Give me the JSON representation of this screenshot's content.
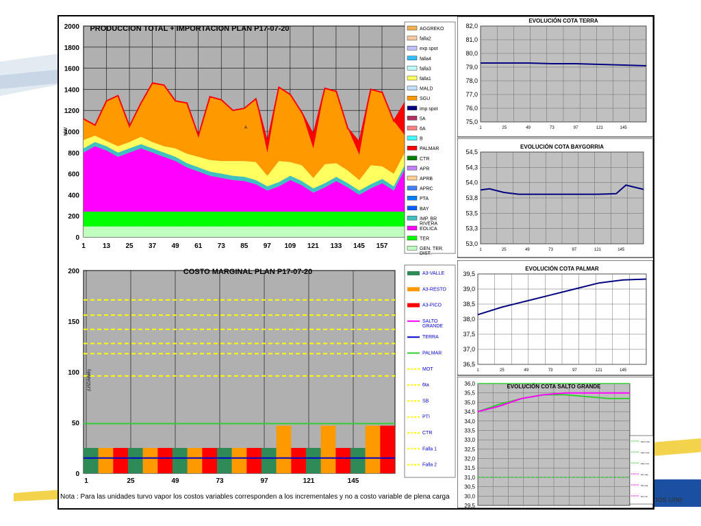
{
  "brand_text": "nos une",
  "note": "Nota : Para las unidades turvo vapor los costos variables corresponden a los incrementales y no a costo variable de plena carga",
  "chart_data": [
    {
      "type": "area",
      "title": "PRODUCCION TOTAL + IMPORTACION  PLAN    P17-07-20",
      "ylabel": "MW",
      "xlabel": "",
      "ylim": [
        0,
        2000
      ],
      "yticks": [
        "0",
        "200",
        "400",
        "600",
        "800",
        "1000",
        "1200",
        "1400",
        "1600",
        "1800",
        "2000"
      ],
      "xticks": [
        "1",
        "13",
        "25",
        "37",
        "49",
        "61",
        "73",
        "85",
        "97",
        "109",
        "121",
        "133",
        "145",
        "157"
      ],
      "annotation": "A",
      "legend": [
        {
          "name": "AGGREKO",
          "color": "#f0b050"
        },
        {
          "name": "falla2",
          "color": "#f4c8a0"
        },
        {
          "name": "exp spot",
          "color": "#c0c0ff"
        },
        {
          "name": "falla4",
          "color": "#30c0ff"
        },
        {
          "name": "falla3",
          "color": "#c0ffff"
        },
        {
          "name": "falla1",
          "color": "#ffff60"
        },
        {
          "name": "MALD",
          "color": "#c0e0ff"
        },
        {
          "name": "SGU",
          "color": "#ff9900"
        },
        {
          "name": "imp spot",
          "color": "#000080"
        },
        {
          "name": "5A",
          "color": "#b03060"
        },
        {
          "name": "6A",
          "color": "#ff8080"
        },
        {
          "name": "B",
          "color": "#40ffff"
        },
        {
          "name": "PALMAR",
          "color": "#ff0000"
        },
        {
          "name": "CTR",
          "color": "#008000"
        },
        {
          "name": "APR",
          "color": "#c080ff"
        },
        {
          "name": "APRB",
          "color": "#ffd090"
        },
        {
          "name": "APRC",
          "color": "#4080ff"
        },
        {
          "name": "PTA",
          "color": "#0080ff"
        },
        {
          "name": "BAY",
          "color": "#0060ff"
        },
        {
          "name": "IMP. BR RIVERA",
          "color": "#40c0c0"
        },
        {
          "name": "EOLICA",
          "color": "#ff00ff"
        },
        {
          "name": "TER",
          "color": "#00ff00"
        },
        {
          "name": "GEN. TER. DIST.",
          "color": "#c0ffc0"
        }
      ],
      "series": [
        {
          "name": "GEN. TER. DIST.",
          "values": [
            100,
            100,
            100,
            100,
            100,
            100,
            100,
            100,
            100,
            100,
            100,
            100,
            100,
            100,
            100,
            100,
            100,
            100,
            100,
            100,
            100,
            100,
            100,
            100,
            100,
            100,
            100,
            100,
            100
          ]
        },
        {
          "name": "TER",
          "values": [
            140,
            140,
            140,
            140,
            140,
            140,
            140,
            140,
            140,
            140,
            140,
            140,
            140,
            140,
            140,
            140,
            140,
            140,
            140,
            140,
            140,
            140,
            140,
            140,
            140,
            140,
            140,
            140,
            140
          ]
        },
        {
          "name": "EOLICA",
          "values": [
            560,
            620,
            580,
            520,
            560,
            600,
            560,
            520,
            480,
            420,
            380,
            340,
            320,
            300,
            290,
            260,
            200,
            240,
            300,
            250,
            180,
            230,
            290,
            230,
            160,
            220,
            270,
            200,
            410
          ]
        },
        {
          "name": "IMP. BR RIVERA",
          "values": [
            40,
            40,
            40,
            40,
            40,
            40,
            40,
            40,
            40,
            40,
            40,
            40,
            40,
            40,
            40,
            40,
            40,
            40,
            40,
            40,
            40,
            40,
            40,
            40,
            40,
            40,
            40,
            40,
            40
          ]
        },
        {
          "name": "falla1",
          "values": [
            80,
            60,
            50,
            60,
            60,
            70,
            60,
            60,
            80,
            90,
            100,
            110,
            120,
            140,
            150,
            170,
            100,
            200,
            130,
            150,
            100,
            180,
            130,
            120,
            100,
            180,
            120,
            120,
            120
          ]
        },
        {
          "name": "SGU",
          "values": [
            200,
            100,
            380,
            480,
            150,
            320,
            560,
            580,
            450,
            480,
            200,
            600,
            580,
            480,
            500,
            600,
            220,
            700,
            640,
            500,
            280,
            720,
            680,
            400,
            240,
            720,
            700,
            500,
            150
          ]
        },
        {
          "name": "PALMAR",
          "values": [
            0,
            0,
            0,
            0,
            0,
            0,
            0,
            0,
            0,
            0,
            0,
            0,
            0,
            0,
            0,
            0,
            100,
            0,
            0,
            0,
            130,
            0,
            0,
            0,
            120,
            0,
            0,
            0,
            320
          ]
        }
      ]
    },
    {
      "type": "bar",
      "title": "COSTO MARGINAL  PLAN    P17-07-20",
      "ylabel": "(USD/MWh)",
      "ylim": [
        0,
        200
      ],
      "yticks": [
        "0",
        "50",
        "100",
        "150",
        "200"
      ],
      "xticks": [
        "1",
        "25",
        "49",
        "73",
        "97",
        "121",
        "145"
      ],
      "legend": [
        {
          "name": "A3-VALLE",
          "color": "#2e8b57",
          "kind": "bar"
        },
        {
          "name": "A3-RESTO",
          "color": "#ff9900",
          "kind": "bar"
        },
        {
          "name": "A3-PICO",
          "color": "#ff0000",
          "kind": "bar"
        },
        {
          "name": "SALTO GRANDE",
          "color": "#ff00ff",
          "kind": "line"
        },
        {
          "name": "TERRA",
          "color": "#0000cc",
          "kind": "line"
        },
        {
          "name": "PALMAR",
          "color": "#33cc33",
          "kind": "line"
        },
        {
          "name": "MOT",
          "color": "#ffff00",
          "kind": "dash"
        },
        {
          "name": "6ta",
          "color": "#ffff00",
          "kind": "dash"
        },
        {
          "name": "SB",
          "color": "#ffff00",
          "kind": "dash"
        },
        {
          "name": "PTI",
          "color": "#ffff00",
          "kind": "dash"
        },
        {
          "name": "CTR",
          "color": "#ffff00",
          "kind": "dash"
        },
        {
          "name": "Falla 1",
          "color": "#ffff00",
          "kind": "dash"
        },
        {
          "name": "Falla 2",
          "color": "#ffff00",
          "kind": "dash"
        }
      ],
      "bars": [
        {
          "cat": "A3-VALLE",
          "value": 25
        },
        {
          "cat": "A3-RESTO",
          "value": 25
        },
        {
          "cat": "A3-PICO",
          "value": 25
        },
        {
          "cat": "A3-VALLE",
          "value": 25
        },
        {
          "cat": "A3-RESTO",
          "value": 25
        },
        {
          "cat": "A3-PICO",
          "value": 25
        },
        {
          "cat": "A3-VALLE",
          "value": 25
        },
        {
          "cat": "A3-RESTO",
          "value": 25
        },
        {
          "cat": "A3-PICO",
          "value": 25
        },
        {
          "cat": "A3-VALLE",
          "value": 25
        },
        {
          "cat": "A3-RESTO",
          "value": 25
        },
        {
          "cat": "A3-PICO",
          "value": 25
        },
        {
          "cat": "A3-VALLE",
          "value": 25
        },
        {
          "cat": "A3-RESTO",
          "value": 47
        },
        {
          "cat": "A3-PICO",
          "value": 25
        },
        {
          "cat": "A3-VALLE",
          "value": 25
        },
        {
          "cat": "A3-RESTO",
          "value": 47
        },
        {
          "cat": "A3-PICO",
          "value": 25
        },
        {
          "cat": "A3-VALLE",
          "value": 25
        },
        {
          "cat": "A3-RESTO",
          "value": 47
        },
        {
          "cat": "A3-PICO",
          "value": 47
        }
      ],
      "lines": [
        {
          "name": "PALMAR",
          "value": 49
        },
        {
          "name": "TERRA",
          "value": 15
        }
      ],
      "dashed_levels": [
        171,
        156,
        142,
        128,
        118,
        96
      ]
    },
    {
      "type": "line",
      "title": "EVOLUCIÓN COTA TERRA",
      "ylim": [
        75,
        82
      ],
      "yticks": [
        "75,0",
        "76,0",
        "77,0",
        "78,0",
        "79,0",
        "80,0",
        "81,0",
        "82,0"
      ],
      "xticks": [
        "1",
        "25",
        "49",
        "73",
        "97",
        "121",
        "145"
      ],
      "x": [
        1,
        25,
        49,
        73,
        97,
        121,
        145,
        168
      ],
      "y": [
        79.3,
        79.3,
        79.3,
        79.25,
        79.25,
        79.2,
        79.15,
        79.1
      ]
    },
    {
      "type": "line",
      "title": "EVOLUCIÓN COTA BAYGORRIA",
      "ylim": [
        53.0,
        54.5
      ],
      "yticks": [
        "53,0",
        "53,3",
        "53,5",
        "53,8",
        "54,0",
        "54,3",
        "54,5"
      ],
      "xticks": [
        "1",
        "25",
        "49",
        "73",
        "97",
        "121",
        "145"
      ],
      "x": [
        1,
        10,
        25,
        40,
        49,
        60,
        73,
        97,
        121,
        140,
        150,
        168
      ],
      "y": [
        53.88,
        53.9,
        53.84,
        53.81,
        53.81,
        53.81,
        53.81,
        53.81,
        53.81,
        53.82,
        53.96,
        53.89
      ]
    },
    {
      "type": "line",
      "title": "EVOLUCIÓN COTA PALMAR",
      "ylim": [
        36.5,
        39.5
      ],
      "yticks": [
        "36,5",
        "37,0",
        "37,5",
        "38,0",
        "38,5",
        "39,0",
        "39,5"
      ],
      "xticks": [
        "1",
        "25",
        "49",
        "73",
        "97",
        "121",
        "145"
      ],
      "x": [
        1,
        25,
        49,
        73,
        97,
        121,
        145,
        168
      ],
      "y": [
        38.15,
        38.4,
        38.6,
        38.8,
        39.0,
        39.2,
        39.3,
        39.33
      ]
    },
    {
      "type": "line",
      "title": "EVOLUCIÓN COTA SALTO GRANDE",
      "ylim": [
        29.5,
        36.0
      ],
      "yticks": [
        "29,5",
        "30,0",
        "30,5",
        "31,0",
        "31,5",
        "32,0",
        "32,5",
        "33,0",
        "33,5",
        "34,0",
        "34,5",
        "35,0",
        "35,5",
        "36,0"
      ],
      "xticks": [
        "1",
        "25",
        "49",
        "73",
        "97",
        "121",
        "145"
      ],
      "series": [
        {
          "name": "SGU",
          "color": "#33cc33",
          "x": [
            1,
            25,
            49,
            73,
            97,
            121,
            145,
            168
          ],
          "y": [
            34.5,
            34.9,
            35.2,
            35.4,
            35.4,
            35.3,
            35.2,
            35.2
          ]
        },
        {
          "name": "SG",
          "color": "#ff00ff",
          "x": [
            1,
            25,
            49,
            73,
            97,
            121,
            145,
            168
          ],
          "y": [
            34.5,
            34.8,
            35.2,
            35.4,
            35.5,
            35.5,
            35.5,
            35.5
          ]
        },
        {
          "name": "max",
          "color": "#33cc33",
          "x": [
            1,
            168
          ],
          "y": [
            36.0,
            36.0
          ]
        },
        {
          "name": "min",
          "color": "#33cc33",
          "x": [
            1,
            168
          ],
          "y": [
            31.0,
            31.0
          ]
        }
      ],
      "legend": [
        "SGU máx",
        "SGU real",
        "SGU mín",
        "SG máx",
        "SG real",
        "SG mín"
      ]
    }
  ]
}
